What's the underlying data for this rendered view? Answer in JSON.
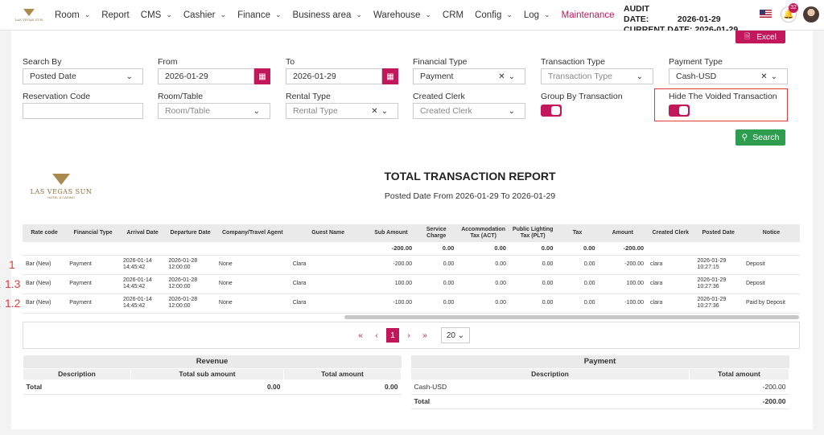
{
  "nav": {
    "logo_text": "LAS VEGAS SUN",
    "items": [
      {
        "label": "Room",
        "chevron": true
      },
      {
        "label": "Report",
        "chevron": false
      },
      {
        "label": "CMS",
        "chevron": true
      },
      {
        "label": "Cashier",
        "chevron": true
      },
      {
        "label": "Finance",
        "chevron": true
      },
      {
        "label": "Business area",
        "chevron": true
      },
      {
        "label": "Warehouse",
        "chevron": true
      },
      {
        "label": "CRM",
        "chevron": false
      },
      {
        "label": "Config",
        "chevron": true
      },
      {
        "label": "Log",
        "chevron": true
      },
      {
        "label": "Maintenance",
        "chevron": false
      }
    ],
    "audit_label": "AUDIT DATE:",
    "audit_date": "2026-01-29",
    "current_label": "CURRENT DATE:",
    "current_date": "2026-01-29",
    "notif_count": "32"
  },
  "toolbar": {
    "excel_label": "Excel",
    "search_label": "Search"
  },
  "filters": {
    "search_by": {
      "label": "Search By",
      "value": "Posted Date"
    },
    "from": {
      "label": "From",
      "value": "2026-01-29"
    },
    "to": {
      "label": "To",
      "value": "2026-01-29"
    },
    "financial_type": {
      "label": "Financial Type",
      "value": "Payment"
    },
    "transaction_type": {
      "label": "Transaction Type",
      "placeholder": "Transaction Type"
    },
    "payment_type": {
      "label": "Payment Type",
      "value": "Cash-USD"
    },
    "reservation_code": {
      "label": "Reservation Code",
      "value": ""
    },
    "room_table": {
      "label": "Room/Table",
      "placeholder": "Room/Table"
    },
    "rental_type": {
      "label": "Rental Type",
      "placeholder": "Rental Type"
    },
    "created_clerk": {
      "label": "Created Clerk",
      "placeholder": "Created Clerk"
    },
    "group_by": {
      "label": "Group By Transaction",
      "on": true
    },
    "hide_voided": {
      "label": "Hide The Voided Transaction",
      "on": true
    }
  },
  "report": {
    "logo_name": "LAS VEGAS SUN",
    "logo_sub": "HOTEL & CASINO",
    "title": "TOTAL TRANSACTION REPORT",
    "subtitle": "Posted Date   From 2026-01-29 To 2026-01-29"
  },
  "transactions": {
    "headers": [
      "Rate code",
      "Financial Type",
      "Arrival Date",
      "Departure Date",
      "Company/Travel Agent",
      "Guest Name",
      "Sub Amount",
      "Service Charge",
      "Accommodation Tax (ACT)",
      "Public Lighting Tax (PLT)",
      "Tax",
      "Amount",
      "Created Clerk",
      "Posted Date",
      "Notice"
    ],
    "totals": [
      "",
      "",
      "",
      "",
      "",
      "",
      "-200.00",
      "0.00",
      "0.00",
      "0.00",
      "0.00",
      "-200.00",
      "",
      "",
      ""
    ],
    "rows": [
      {
        "mark": "1",
        "cells": [
          "Bar (New)",
          "Payment",
          "2026-01-14 14:45:42",
          "2026-01-28 12:00:00",
          "None",
          "Clara",
          "-200.00",
          "0.00",
          "0.00",
          "0.00",
          "0.00",
          "-200.00",
          "clara",
          "2026-01-29 10:27:15",
          "Deposit"
        ]
      },
      {
        "mark": "1.3",
        "cells": [
          "Bar (New)",
          "Payment",
          "2026-01-14 14:45:42",
          "2026-01-28 12:00:00",
          "None",
          "Clara",
          "100.00",
          "0.00",
          "0.00",
          "0.00",
          "0.00",
          "100.00",
          "clara",
          "2026-01-29 10:27:36",
          "Deposit"
        ]
      },
      {
        "mark": "1.2",
        "cells": [
          "Bar (New)",
          "Payment",
          "2026-01-14 14:45:42",
          "2026-01-28 12:00:00",
          "None",
          "Clara",
          "-100.00",
          "0.00",
          "0.00",
          "0.00",
          "0.00",
          "-100.00",
          "clara",
          "2026-01-29 10:27:36",
          "Paid by Deposit"
        ]
      }
    ]
  },
  "pager": {
    "first": "«",
    "prev": "‹",
    "current": "1",
    "next": "›",
    "last": "»",
    "page_size": "20"
  },
  "revenue": {
    "title": "Revenue",
    "headers": [
      "Description",
      "Total sub amount",
      "Total amount"
    ],
    "rows": [
      {
        "desc": "Total",
        "sub": "0.00",
        "amount": "0.00"
      }
    ]
  },
  "payment": {
    "title": "Payment",
    "headers": [
      "Description",
      "Total amount"
    ],
    "rows": [
      {
        "desc": "Cash-USD",
        "amount": "-200.00"
      },
      {
        "desc": "Total",
        "amount": "-200.00"
      }
    ]
  }
}
